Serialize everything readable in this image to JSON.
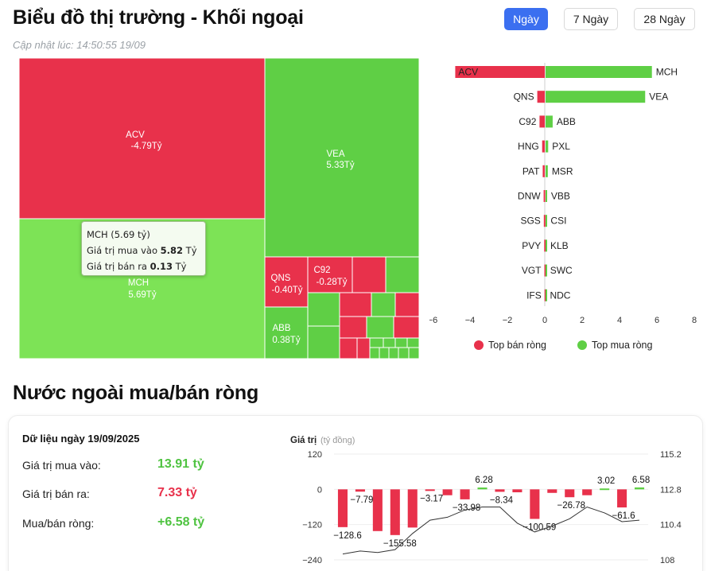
{
  "header": {
    "title": "Biểu đồ thị trường - Khối ngoại",
    "updated": "Cập nhật lúc: 14:50:55 19/09",
    "ranges": [
      {
        "label": "Ngày",
        "active": true
      },
      {
        "label": "7 Ngày",
        "active": false
      },
      {
        "label": "28 Ngày",
        "active": false
      }
    ]
  },
  "colors": {
    "buy": "#5fcf45",
    "sell": "#e8314b",
    "active_button": "#3b6ff0"
  },
  "treemap": {
    "labels": {
      "acv": {
        "name": "ACV",
        "value": "-4.79Tỷ"
      },
      "vea": {
        "name": "VEA",
        "value": "5.33Tỷ"
      },
      "mch": {
        "name": "MCH",
        "value": "5.69Tỷ"
      },
      "qns": {
        "name": "QNS",
        "value": "-0.40Tỷ"
      },
      "c92": {
        "name": "C92",
        "value": "-0.28Tỷ"
      },
      "abb": {
        "name": "ABB",
        "value": "0.38Tỷ"
      }
    }
  },
  "tooltip": {
    "title": "MCH (5.69 tỷ)",
    "buy_label": "Giá trị mua vào",
    "buy_value": "5.82",
    "buy_unit": "Tỷ",
    "sell_label": "Giá trị bán ra",
    "sell_value": "0.13",
    "sell_unit": "Tỷ"
  },
  "section2": {
    "title": "Nước ngoài mua/bán ròng",
    "date_label": "Dữ liệu ngày 19/09/2025",
    "buy_label": "Giá trị mua vào:",
    "buy_value": "13.91 tỷ",
    "sell_label": "Giá trị bán ra:",
    "sell_value": "7.33 tỷ",
    "net_label": "Mua/bán ròng:",
    "net_value": "+6.58 tỷ"
  },
  "chart_data": [
    {
      "type": "treemap",
      "unit": "Tỷ",
      "items": [
        {
          "name": "ACV",
          "value": -4.79
        },
        {
          "name": "VEA",
          "value": 5.33
        },
        {
          "name": "MCH",
          "value": 5.69
        },
        {
          "name": "QNS",
          "value": -0.4
        },
        {
          "name": "C92",
          "value": -0.28
        },
        {
          "name": "ABB",
          "value": 0.38
        }
      ]
    },
    {
      "type": "bar",
      "orientation": "horizontal",
      "xlim": [
        -6,
        8
      ],
      "x_ticks": [
        "−6",
        "−4",
        "−2",
        "0",
        "2",
        "4",
        "6",
        "8"
      ],
      "legend": [
        {
          "name": "Top bán ròng",
          "color": "#e8314b"
        },
        {
          "name": "Top mua ròng",
          "color": "#5fcf45"
        }
      ],
      "rows": [
        {
          "sell": "ACV",
          "sell_value": -4.79,
          "buy": "MCH",
          "buy_value": 5.69
        },
        {
          "sell": "QNS",
          "sell_value": -0.4,
          "buy": "VEA",
          "buy_value": 5.33
        },
        {
          "sell": "C92",
          "sell_value": -0.28,
          "buy": "ABB",
          "buy_value": 0.38
        },
        {
          "sell": "HNG",
          "sell_value": -0.14,
          "buy": "PXL",
          "buy_value": 0.14
        },
        {
          "sell": "PAT",
          "sell_value": -0.11,
          "buy": "MSR",
          "buy_value": 0.12
        },
        {
          "sell": "DNW",
          "sell_value": -0.06,
          "buy": "VBB",
          "buy_value": 0.08
        },
        {
          "sell": "SGS",
          "sell_value": -0.05,
          "buy": "CSI",
          "buy_value": 0.06
        },
        {
          "sell": "PVY",
          "sell_value": -0.03,
          "buy": "KLB",
          "buy_value": 0.04
        },
        {
          "sell": "VGT",
          "sell_value": -0.02,
          "buy": "SWC",
          "buy_value": 0.03
        },
        {
          "sell": "IFS",
          "sell_value": -0.01,
          "buy": "NDC",
          "buy_value": 0.02
        }
      ]
    },
    {
      "type": "bar",
      "y_title": "Giá trị",
      "y_unit": "(tỷ đồng)",
      "ylim": [
        -240,
        120
      ],
      "y_ticks": [
        "120",
        "0",
        "−120",
        "−240"
      ],
      "y2lim": [
        108,
        115.2
      ],
      "y2_ticks": [
        "115.2",
        "112.8",
        "110.4",
        "108"
      ],
      "values": [
        -128.6,
        -7.79,
        -142,
        -155.58,
        -130,
        -3.17,
        -20,
        -33.98,
        6.28,
        -8.34,
        -10,
        -100.59,
        -12,
        -26.78,
        -20,
        3.02,
        -61.6,
        6.58
      ],
      "data_labels": {
        "0": "−128.6",
        "1": "−7.79",
        "3": "−155.58",
        "5": "−3.17",
        "7": "−33.98",
        "8": "6.28",
        "9": "−8.34",
        "11": "−100.59",
        "13": "−26.78",
        "15": "3.02",
        "16": "−61.6",
        "17": "6.58"
      },
      "line": [
        108.4,
        108.6,
        108.5,
        108.7,
        109.8,
        110.7,
        110.9,
        111.4,
        111.6,
        111.6,
        110.5,
        109.9,
        110.3,
        110.8,
        111.6,
        111.2,
        110.6,
        110.7
      ]
    }
  ]
}
